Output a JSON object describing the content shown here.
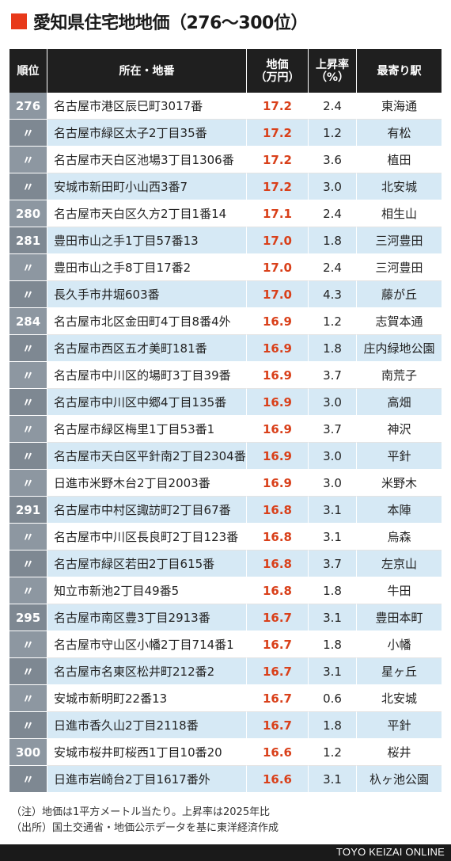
{
  "title": "愛知県住宅地地価（276〜300位）",
  "headers": {
    "rank": "順位",
    "address": "所在・地番",
    "price_line1": "地価",
    "price_line2": "（万円）",
    "rate_line1": "上昇率",
    "rate_line2": "（%）",
    "station": "最寄り駅"
  },
  "rows": [
    {
      "rank": "276",
      "address": "名古屋市港区辰巳町3017番",
      "price": "17.2",
      "rate": "2.4",
      "station": "東海通"
    },
    {
      "rank": "〃",
      "address": "名古屋市緑区太子2丁目35番",
      "price": "17.2",
      "rate": "1.2",
      "station": "有松"
    },
    {
      "rank": "〃",
      "address": "名古屋市天白区池場3丁目1306番",
      "price": "17.2",
      "rate": "3.6",
      "station": "植田"
    },
    {
      "rank": "〃",
      "address": "安城市新田町小山西3番7",
      "price": "17.2",
      "rate": "3.0",
      "station": "北安城"
    },
    {
      "rank": "280",
      "address": "名古屋市天白区久方2丁目1番14",
      "price": "17.1",
      "rate": "2.4",
      "station": "相生山"
    },
    {
      "rank": "281",
      "address": "豊田市山之手1丁目57番13",
      "price": "17.0",
      "rate": "1.8",
      "station": "三河豊田"
    },
    {
      "rank": "〃",
      "address": "豊田市山之手8丁目17番2",
      "price": "17.0",
      "rate": "2.4",
      "station": "三河豊田"
    },
    {
      "rank": "〃",
      "address": "長久手市井堀603番",
      "price": "17.0",
      "rate": "4.3",
      "station": "藤が丘"
    },
    {
      "rank": "284",
      "address": "名古屋市北区金田町4丁目8番4外",
      "price": "16.9",
      "rate": "1.2",
      "station": "志賀本通"
    },
    {
      "rank": "〃",
      "address": "名古屋市西区五才美町181番",
      "price": "16.9",
      "rate": "1.8",
      "station": "庄内緑地公園"
    },
    {
      "rank": "〃",
      "address": "名古屋市中川区的場町3丁目39番",
      "price": "16.9",
      "rate": "3.7",
      "station": "南荒子"
    },
    {
      "rank": "〃",
      "address": "名古屋市中川区中郷4丁目135番",
      "price": "16.9",
      "rate": "3.0",
      "station": "高畑"
    },
    {
      "rank": "〃",
      "address": "名古屋市緑区梅里1丁目53番1",
      "price": "16.9",
      "rate": "3.7",
      "station": "神沢"
    },
    {
      "rank": "〃",
      "address": "名古屋市天白区平針南2丁目2304番",
      "price": "16.9",
      "rate": "3.0",
      "station": "平針"
    },
    {
      "rank": "〃",
      "address": "日進市米野木台2丁目2003番",
      "price": "16.9",
      "rate": "3.0",
      "station": "米野木"
    },
    {
      "rank": "291",
      "address": "名古屋市中村区諏訪町2丁目67番",
      "price": "16.8",
      "rate": "3.1",
      "station": "本陣"
    },
    {
      "rank": "〃",
      "address": "名古屋市中川区長良町2丁目123番",
      "price": "16.8",
      "rate": "3.1",
      "station": "烏森"
    },
    {
      "rank": "〃",
      "address": "名古屋市緑区若田2丁目615番",
      "price": "16.8",
      "rate": "3.7",
      "station": "左京山"
    },
    {
      "rank": "〃",
      "address": "知立市新池2丁目49番5",
      "price": "16.8",
      "rate": "1.8",
      "station": "牛田"
    },
    {
      "rank": "295",
      "address": "名古屋市南区豊3丁目2913番",
      "price": "16.7",
      "rate": "3.1",
      "station": "豊田本町"
    },
    {
      "rank": "〃",
      "address": "名古屋市守山区小幡2丁目714番1",
      "price": "16.7",
      "rate": "1.8",
      "station": "小幡"
    },
    {
      "rank": "〃",
      "address": "名古屋市名東区松井町212番2",
      "price": "16.7",
      "rate": "3.1",
      "station": "星ヶ丘"
    },
    {
      "rank": "〃",
      "address": "安城市新明町22番13",
      "price": "16.7",
      "rate": "0.6",
      "station": "北安城"
    },
    {
      "rank": "〃",
      "address": "日進市香久山2丁目2118番",
      "price": "16.7",
      "rate": "1.8",
      "station": "平針"
    },
    {
      "rank": "300",
      "address": "安城市桜井町桜西1丁目10番20",
      "price": "16.6",
      "rate": "1.2",
      "station": "桜井"
    },
    {
      "rank": "〃",
      "address": "日進市岩崎台2丁目1617番外",
      "price": "16.6",
      "rate": "3.1",
      "station": "杁ヶ池公園"
    }
  ],
  "notes": {
    "note": "（注）地価は1平方メートル当たり。上昇率は2025年比",
    "source": "（出所）国土交通省・地価公示データを基に東洋経済作成"
  },
  "footer": "TOYO KEIZAI ONLINE",
  "colors": {
    "accent": "#e8391a",
    "price_text": "#d9401a",
    "header_bg": "#1f1f1f",
    "stripe": "#d6e9f5",
    "rank_cell": "#8d97a1"
  }
}
